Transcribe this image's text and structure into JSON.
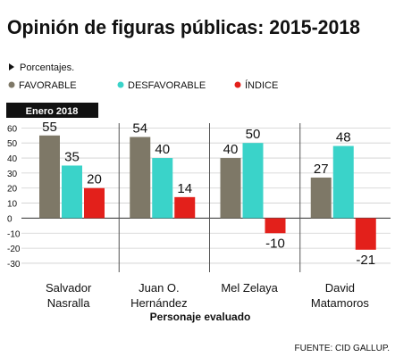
{
  "chart_data": {
    "type": "bar",
    "title": "Opinión de figuras públicas: 2015-2018",
    "subtitle": "Porcentajes.",
    "period_label": "Enero 2018",
    "xlabel": "Personaje evaluado",
    "source": "FUENTE: CID GALLUP.",
    "categories": [
      [
        "Salvador",
        "Nasralla"
      ],
      [
        "Juan O.",
        "Hernández"
      ],
      [
        "Mel Zelaya"
      ],
      [
        "David",
        "Matamoros"
      ]
    ],
    "series": [
      {
        "name": "FAVORABLE",
        "color": "#7e7867",
        "values": [
          55,
          54,
          40,
          27
        ]
      },
      {
        "name": "DESFAVORABLE",
        "color": "#3ad3c9",
        "values": [
          35,
          40,
          50,
          48
        ]
      },
      {
        "name": "ÍNDICE",
        "color": "#e3201b",
        "values": [
          20,
          14,
          -10,
          -21
        ]
      }
    ],
    "yticks": [
      60,
      50,
      40,
      30,
      20,
      10,
      0,
      -10,
      -20,
      -30
    ],
    "ylim": [
      -33,
      62
    ],
    "grid": "horizontal",
    "legend_position": "top"
  }
}
